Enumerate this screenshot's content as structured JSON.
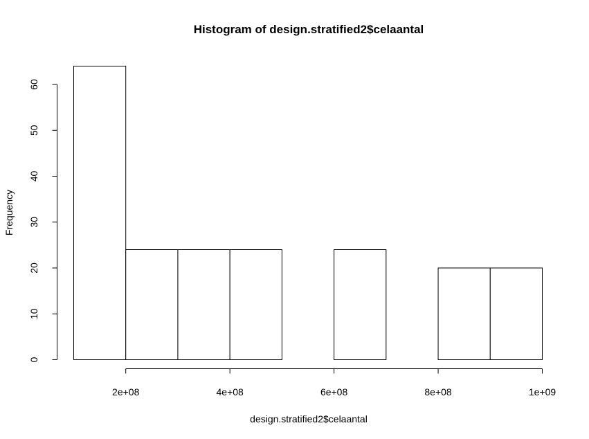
{
  "chart_data": {
    "type": "bar",
    "title": "Histogram of design.stratified2$celaantal",
    "xlabel": "design.stratified2$celaantal",
    "ylabel": "Frequency",
    "bins": [
      {
        "from": 100000000,
        "to": 200000000,
        "count": 64
      },
      {
        "from": 200000000,
        "to": 300000000,
        "count": 24
      },
      {
        "from": 300000000,
        "to": 400000000,
        "count": 24
      },
      {
        "from": 400000000,
        "to": 500000000,
        "count": 24
      },
      {
        "from": 500000000,
        "to": 600000000,
        "count": 0
      },
      {
        "from": 600000000,
        "to": 700000000,
        "count": 24
      },
      {
        "from": 700000000,
        "to": 800000000,
        "count": 0
      },
      {
        "from": 800000000,
        "to": 900000000,
        "count": 20
      },
      {
        "from": 900000000,
        "to": 1000000000,
        "count": 20
      }
    ],
    "xlim": [
      100000000,
      1000000000
    ],
    "ylim": [
      0,
      64
    ],
    "x_ticks": [
      {
        "value": 200000000,
        "label": "2e+08"
      },
      {
        "value": 400000000,
        "label": "4e+08"
      },
      {
        "value": 600000000,
        "label": "6e+08"
      },
      {
        "value": 800000000,
        "label": "8e+08"
      },
      {
        "value": 1000000000,
        "label": "1e+09"
      }
    ],
    "y_ticks": [
      {
        "value": 0,
        "label": "0"
      },
      {
        "value": 10,
        "label": "10"
      },
      {
        "value": 20,
        "label": "20"
      },
      {
        "value": 30,
        "label": "30"
      },
      {
        "value": 40,
        "label": "40"
      },
      {
        "value": 50,
        "label": "50"
      },
      {
        "value": 60,
        "label": "60"
      }
    ],
    "grid": false,
    "colors": {
      "bar_fill": "#ffffff",
      "bar_stroke": "#000000"
    }
  }
}
